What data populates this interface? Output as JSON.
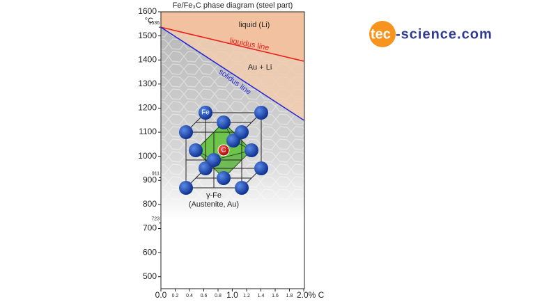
{
  "chart_data": {
    "type": "line",
    "title": "Fe/Fe₃C phase diagram (steel part)",
    "y_unit": "°C",
    "x": [
      0,
      2.0
    ],
    "series": [
      {
        "name": "liquidus line",
        "color": "#e8231f",
        "values": [
          1536,
          1395
        ]
      },
      {
        "name": "solidus line",
        "color": "#2a2ad0",
        "values": [
          1536,
          1150
        ]
      }
    ],
    "xlim": [
      0,
      2.0
    ],
    "ylim": [
      450,
      1600
    ],
    "xticks": [
      {
        "value": 0,
        "label": "0.0"
      },
      0.2,
      0.4,
      0.6,
      0.8,
      {
        "value": 1,
        "label": "1.0"
      },
      1.2,
      1.4,
      1.6,
      1.8,
      {
        "value": 2,
        "label": "2.0% C"
      }
    ],
    "yticks": [
      500,
      600,
      700,
      800,
      900,
      1000,
      1100,
      1200,
      1300,
      1400,
      1500,
      1600
    ],
    "marked_temperatures": [
      1536,
      911,
      723
    ],
    "annotations": {
      "liquid": "liquid (Li)",
      "mixed": "Au + Li",
      "fe_atom": "Fe",
      "c_atom": "C",
      "phase": "γ-Fe",
      "phase_name": "(Austenite, Au)"
    },
    "logo": {
      "part1": "tec",
      "part2": "-science.com"
    }
  }
}
